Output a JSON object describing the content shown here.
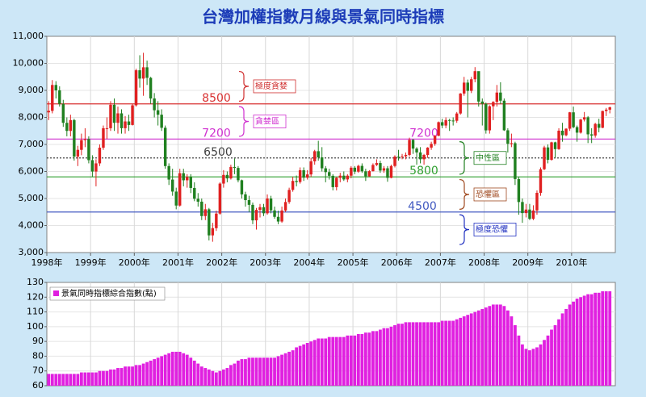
{
  "chart_data": [
    {
      "type": "candlestick",
      "title": "台灣加權指數月線與景氣同時指標",
      "categories": [
        "1998年",
        null,
        null,
        null,
        null,
        null,
        null,
        null,
        null,
        null,
        null,
        null,
        "1999年",
        null,
        null,
        null,
        null,
        null,
        null,
        null,
        null,
        null,
        null,
        null,
        "2000年",
        null,
        null,
        null,
        null,
        null,
        null,
        null,
        null,
        null,
        null,
        null,
        "2001年",
        null,
        null,
        null,
        null,
        null,
        null,
        null,
        null,
        null,
        null,
        null,
        "2002年",
        null,
        null,
        null,
        null,
        null,
        null,
        null,
        null,
        null,
        null,
        null,
        "2003年",
        null,
        null,
        null,
        null,
        null,
        null,
        null,
        null,
        null,
        null,
        null,
        "2004年",
        null,
        null,
        null,
        null,
        null,
        null,
        null,
        null,
        null,
        null,
        null,
        "2005年",
        null,
        null,
        null,
        null,
        null,
        null,
        null,
        null,
        null,
        null,
        null,
        "2006年",
        null,
        null,
        null,
        null,
        null,
        null,
        null,
        null,
        null,
        null,
        null,
        "2007年",
        null,
        null,
        null,
        null,
        null,
        null,
        null,
        null,
        null,
        null,
        null,
        "2008年",
        null,
        null,
        null,
        null,
        null,
        null,
        null,
        null,
        null,
        null,
        null,
        "2009年",
        null,
        null,
        null,
        null,
        null,
        null,
        null,
        null,
        null,
        null,
        null,
        "2010年",
        null,
        null,
        null,
        null,
        null,
        null,
        null,
        null,
        null,
        null
      ],
      "open": [
        8187,
        8242,
        9200,
        9000,
        8500,
        7800,
        7500,
        7900,
        6550,
        6800,
        7160,
        7200,
        6418,
        5998,
        6300,
        6880,
        7600,
        7600,
        8467,
        7800,
        8150,
        7600,
        7850,
        7720,
        8448,
        9744,
        9436,
        9854,
        9463,
        8700,
        8265,
        8100,
        7616,
        6200,
        5700,
        5256,
        4739,
        5936,
        5674,
        5797,
        5390,
        4990,
        4883,
        4350,
        4600,
        3636,
        3903,
        4441,
        5551,
        5872,
        5743,
        6167,
        6130,
        5675,
        5153,
        4940,
        4765,
        4191,
        4579,
        4680,
        4452,
        5000,
        4560,
        4321,
        4148,
        4556,
        4870,
        5318,
        5650,
        5611,
        6045,
        5771,
        5890,
        6375,
        6750,
        6522,
        6117,
        5977,
        5839,
        5420,
        5765,
        5845,
        5705,
        5844,
        6139,
        5994,
        6207,
        6006,
        5818,
        6011,
        6241,
        6311,
        6033,
        6118,
        5764,
        6203,
        6548,
        6532,
        6561,
        6613,
        7171,
        6846,
        6704,
        6451,
        6611,
        6883,
        7021,
        7321,
        7823,
        7699,
        7902,
        7884,
        7875,
        8145,
        8883,
        9287,
        8982,
        9411,
        9711,
        8586,
        8506,
        7521,
        8412,
        8572,
        8919,
        8619,
        7523,
        7024,
        7046,
        5719,
        4870,
        4460,
        4591,
        4248,
        4557,
        5210,
        6083,
        6890,
        6432,
        7078,
        6826,
        7509,
        7340,
        7582,
        8188,
        7640,
        7436,
        7920,
        8004,
        7374,
        7329,
        7760,
        7616,
        8237,
        8287
      ],
      "high": [
        8600,
        9380,
        9340,
        9150,
        8650,
        8000,
        8100,
        7950,
        6950,
        7400,
        7600,
        7300,
        6600,
        6450,
        7000,
        7700,
        8000,
        8600,
        8700,
        8400,
        8300,
        8050,
        8100,
        8500,
        9800,
        10300,
        10390,
        10100,
        9500,
        8900,
        8600,
        8300,
        7700,
        6300,
        6100,
        5400,
        6100,
        6100,
        5900,
        5900,
        5600,
        5200,
        5000,
        4800,
        4650,
        4100,
        4550,
        5600,
        6050,
        6000,
        6250,
        6480,
        6200,
        5700,
        5250,
        5100,
        4850,
        4650,
        4800,
        4800,
        5150,
        5100,
        4700,
        4550,
        4700,
        5000,
        5400,
        5800,
        5850,
        6150,
        6150,
        6050,
        6500,
        6800,
        7135,
        6900,
        6200,
        6100,
        5900,
        5800,
        5950,
        6000,
        5900,
        6200,
        6200,
        6250,
        6300,
        6100,
        6050,
        6300,
        6450,
        6400,
        6200,
        6200,
        6250,
        6600,
        6800,
        6650,
        6700,
        7250,
        7200,
        6900,
        6900,
        6650,
        6900,
        7100,
        7350,
        7850,
        7950,
        8000,
        7950,
        8000,
        8200,
        8900,
        9500,
        9400,
        9500,
        9860,
        9700,
        8700,
        8550,
        8450,
        8600,
        9200,
        9300,
        8700,
        7600,
        7400,
        7100,
        5800,
        5000,
        4800,
        4800,
        4750,
        5300,
        6150,
        6950,
        7000,
        7100,
        7100,
        7600,
        7800,
        7600,
        8200,
        8400,
        7700,
        7950,
        8200,
        8050,
        7600,
        7800,
        7950,
        8250,
        8350,
        8400
      ],
      "low": [
        7900,
        8150,
        8700,
        8400,
        7650,
        7300,
        7300,
        6400,
        6200,
        6600,
        6900,
        6300,
        5800,
        5450,
        6200,
        6800,
        7200,
        7500,
        7500,
        7400,
        7400,
        7400,
        7500,
        7700,
        8400,
        9100,
        8800,
        9200,
        8500,
        8000,
        7700,
        7500,
        6100,
        5500,
        5100,
        4600,
        4700,
        5450,
        5400,
        5200,
        4900,
        4700,
        4200,
        4200,
        3450,
        3400,
        3800,
        4400,
        5400,
        5600,
        5700,
        5900,
        5600,
        5000,
        4700,
        4500,
        4050,
        3850,
        4300,
        4350,
        4400,
        4450,
        4250,
        4050,
        4100,
        4500,
        4800,
        5250,
        5450,
        5550,
        5650,
        5700,
        5800,
        6250,
        6400,
        6000,
        5600,
        5700,
        5300,
        5300,
        5600,
        5650,
        5600,
        5750,
        5900,
        5950,
        5950,
        5650,
        5800,
        6000,
        6200,
        5950,
        5950,
        5620,
        5750,
        6150,
        6400,
        6450,
        6450,
        6550,
        6650,
        6250,
        6300,
        6250,
        6500,
        6800,
        6950,
        7300,
        7600,
        7600,
        7500,
        7700,
        7800,
        8100,
        8800,
        8000,
        8900,
        9300,
        8400,
        7700,
        7400,
        7400,
        7900,
        8400,
        8500,
        7500,
        6700,
        6900,
        5500,
        4400,
        4100,
        4300,
        4200,
        4200,
        4400,
        5100,
        6050,
        6300,
        6400,
        6500,
        6800,
        7100,
        7300,
        7500,
        7600,
        7100,
        7400,
        7850,
        7050,
        7050,
        7250,
        7450,
        7600,
        8050,
        8150
      ],
      "close": [
        8242,
        9200,
        9000,
        8500,
        7800,
        7500,
        7900,
        6550,
        6800,
        7160,
        7200,
        6418,
        5998,
        6300,
        6880,
        7600,
        7600,
        8467,
        7800,
        8150,
        7600,
        7850,
        7720,
        8448,
        9744,
        9436,
        9854,
        9463,
        8700,
        8265,
        8100,
        7616,
        6200,
        5700,
        5256,
        4739,
        5936,
        5674,
        5797,
        5390,
        4990,
        4883,
        4350,
        4600,
        3636,
        3903,
        4441,
        5551,
        5872,
        5743,
        6167,
        6130,
        5675,
        5153,
        4940,
        4765,
        4191,
        4579,
        4680,
        4452,
        5000,
        4560,
        4321,
        4148,
        4556,
        4870,
        5318,
        5650,
        5611,
        6045,
        5771,
        5890,
        6375,
        6750,
        6522,
        6117,
        5977,
        5839,
        5420,
        5765,
        5845,
        5705,
        5844,
        6139,
        5994,
        6207,
        6006,
        5818,
        6011,
        6241,
        6311,
        6033,
        6118,
        5764,
        6203,
        6548,
        6532,
        6561,
        6613,
        7171,
        6846,
        6704,
        6451,
        6611,
        6883,
        7021,
        7321,
        7823,
        7699,
        7902,
        7884,
        7875,
        8145,
        8883,
        9287,
        8982,
        9411,
        9711,
        8586,
        8506,
        7521,
        8412,
        8572,
        8919,
        8619,
        7523,
        7024,
        7046,
        5719,
        4870,
        4460,
        4591,
        4248,
        4557,
        5210,
        6083,
        6890,
        6432,
        7078,
        6826,
        7509,
        7340,
        7582,
        8188,
        7640,
        7436,
        7920,
        8004,
        7374,
        7329,
        7760,
        7616,
        8237,
        8287,
        8372
      ],
      "up_color": "#e02020",
      "down_color": "#208020",
      "ylim": [
        3000,
        11000
      ],
      "yticks": [
        {
          "value": 3000,
          "label": "3,000"
        },
        {
          "value": 4000,
          "label": "4,000"
        },
        {
          "value": 5000,
          "label": "5,000"
        },
        {
          "value": 6000,
          "label": "6,000"
        },
        {
          "value": 7000,
          "label": "7,000"
        },
        {
          "value": 8000,
          "label": "8,000"
        },
        {
          "value": 9000,
          "label": "9,000"
        },
        {
          "value": 10000,
          "label": "10,000"
        },
        {
          "value": 11000,
          "label": "11,000"
        }
      ],
      "grid": true,
      "reference_lines": [
        {
          "value": 8500,
          "color": "#d83030",
          "style": "solid"
        },
        {
          "value": 7200,
          "color": "#d030d0",
          "style": "solid"
        },
        {
          "value": 6500,
          "color": "#404040",
          "style": "dotted"
        },
        {
          "value": 5800,
          "color": "#30a030",
          "style": "solid"
        },
        {
          "value": 4500,
          "color": "#4058c0",
          "style": "solid"
        }
      ],
      "zones": [
        {
          "label": "極度貪婪",
          "range": [
            8600,
            9700
          ],
          "color": "#d03030"
        },
        {
          "label": "貪婪區",
          "range": [
            7300,
            8400
          ],
          "color": "#d030d0"
        },
        {
          "label": "中性區",
          "range": [
            5900,
            7100
          ],
          "color": "#208020"
        },
        {
          "label": "恐懼區",
          "range": [
            4600,
            5700
          ],
          "color": "#a04a20"
        },
        {
          "label": "極度恐懼",
          "range": [
            3300,
            4400
          ],
          "color": "#2030c0"
        }
      ]
    },
    {
      "type": "bar",
      "series": [
        {
          "name": "景氣同時指標綜合指數(點)",
          "color": "#e020e0",
          "values": [
            68,
            68,
            68,
            68,
            68,
            68,
            68,
            68,
            68,
            69,
            69,
            69,
            69,
            69,
            70,
            70,
            70,
            71,
            71,
            72,
            72,
            73,
            73,
            73,
            74,
            74,
            75,
            76,
            77,
            78,
            79,
            80,
            81,
            82,
            83,
            83,
            83,
            82,
            81,
            79,
            77,
            75,
            73,
            72,
            71,
            70,
            69,
            70,
            71,
            72,
            74,
            75,
            77,
            78,
            78,
            79,
            79,
            79,
            79,
            79,
            79,
            79,
            79,
            80,
            81,
            82,
            83,
            84,
            86,
            87,
            88,
            89,
            90,
            91,
            92,
            92,
            92,
            93,
            93,
            93,
            93,
            93,
            94,
            94,
            94,
            95,
            95,
            96,
            96,
            97,
            97,
            98,
            99,
            99,
            100,
            101,
            102,
            102,
            103,
            103,
            103,
            103,
            103,
            103,
            103,
            103,
            103,
            103,
            104,
            104,
            104,
            104,
            105,
            106,
            107,
            108,
            109,
            110,
            111,
            112,
            113,
            114,
            115,
            115,
            115,
            114,
            111,
            107,
            101,
            94,
            88,
            85,
            84,
            85,
            86,
            88,
            91,
            94,
            98,
            101,
            105,
            109,
            112,
            115,
            117,
            119,
            120,
            121,
            122,
            122,
            123,
            123,
            124,
            124,
            124
          ]
        }
      ],
      "ylim": [
        60,
        130
      ],
      "yticks": [
        60,
        70,
        80,
        90,
        100,
        110,
        120,
        130
      ],
      "grid": true,
      "legend": "upper left"
    }
  ]
}
